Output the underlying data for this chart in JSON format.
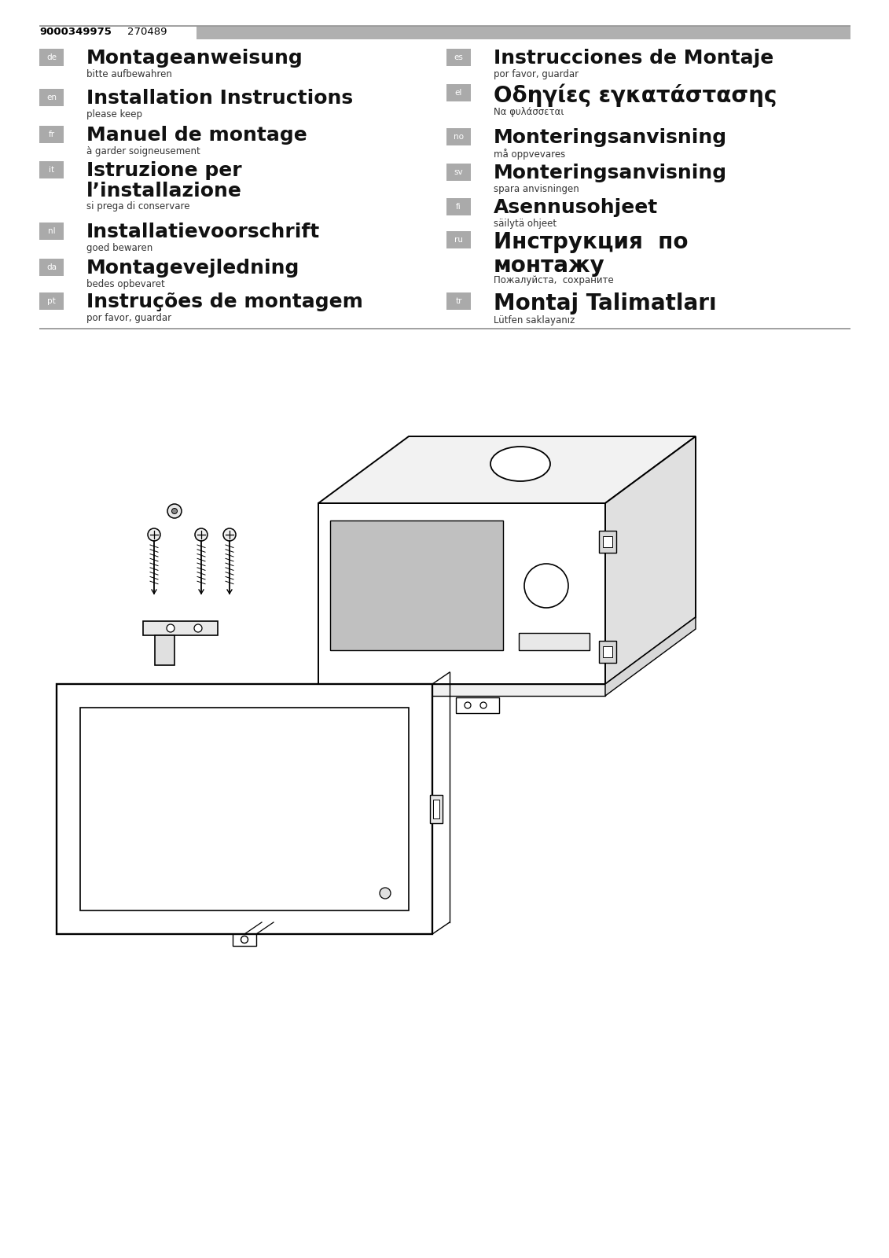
{
  "bg_color": "#ffffff",
  "header_number": "9000349975",
  "header_sub": "270489",
  "header_bar_color": "#b0b0b0",
  "lang_badge_color": "#aaaaaa",
  "lang_badge_text_color": "#ffffff",
  "divider_color": "#999999",
  "left_entries": [
    {
      "code": "de",
      "title": "Montageanweisung",
      "subtitle": "bitte aufbewahren",
      "two_line": false
    },
    {
      "code": "en",
      "title": "Installation Instructions",
      "subtitle": "please keep",
      "two_line": false
    },
    {
      "code": "fr",
      "title": "Manuel de montage",
      "subtitle": "à garder soigneusement",
      "two_line": false
    },
    {
      "code": "it",
      "title": "Istruzione per\nl’installazione",
      "subtitle": "si prega di conservare",
      "two_line": true
    },
    {
      "code": "nl",
      "title": "Installatievoorschrift",
      "subtitle": "goed bewaren",
      "two_line": false
    },
    {
      "code": "da",
      "title": "Montagevejledning",
      "subtitle": "bedes opbevaret",
      "two_line": false
    },
    {
      "code": "pt",
      "title": "Instruções de montagem",
      "subtitle": "por favor, guardar",
      "two_line": false
    }
  ],
  "right_entries": [
    {
      "code": "es",
      "title": "Instrucciones de Montaje",
      "subtitle": "por favor, guardar",
      "two_line": false,
      "bold_style": "normal"
    },
    {
      "code": "el",
      "title": "Οδηγίες εγκατάστασης",
      "subtitle": "Να φυλάσσεται",
      "two_line": false,
      "bold_style": "extra"
    },
    {
      "code": "no",
      "title": "Monteringsanvisning",
      "subtitle": "må oppvevares",
      "two_line": false,
      "bold_style": "normal"
    },
    {
      "code": "sv",
      "title": "Monteringsanvisning",
      "subtitle": "spara anvisningen",
      "two_line": false,
      "bold_style": "normal"
    },
    {
      "code": "fi",
      "title": "Asennusohjeet",
      "subtitle": "säilytä ohjeet",
      "two_line": false,
      "bold_style": "normal"
    },
    {
      "code": "ru",
      "title": "Инструкция  по\nмонтажу",
      "subtitle": "Пожалуйста,  сохраните",
      "two_line": true,
      "bold_style": "extra"
    },
    {
      "code": "tr",
      "title": "Montaj Talimatları",
      "subtitle": "Lütfen saklayanız",
      "two_line": false,
      "bold_style": "large"
    }
  ]
}
